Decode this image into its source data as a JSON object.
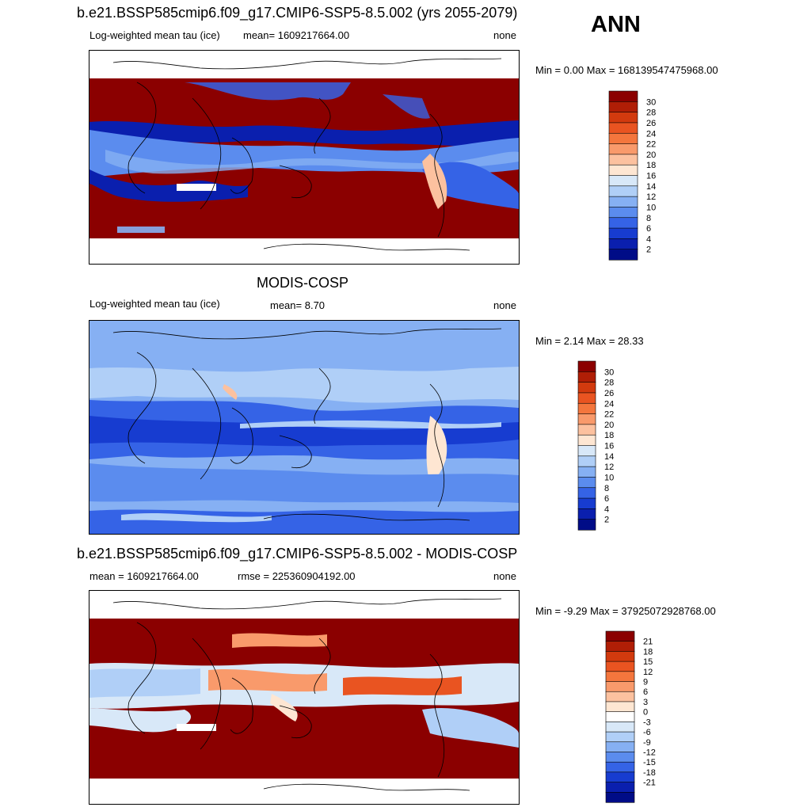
{
  "figure": {
    "season": "ANN"
  },
  "panels": [
    {
      "id": "test",
      "title": "b.e21.BSSP585cmip6.f09_g17.CMIP6-SSP5-8.5.002 (yrs 2055-2079)",
      "left_label": "Log-weighted mean tau (ice)",
      "mean_label": "mean= 1609217664.00",
      "units": "none",
      "minmax": "Min =   0.00 Max = 168139547475968.00",
      "colorbar": {
        "labels": [
          "30",
          "28",
          "26",
          "24",
          "22",
          "20",
          "18",
          "16",
          "14",
          "12",
          "10",
          "8",
          "6",
          "4",
          "2"
        ],
        "colors": [
          "#8B0000",
          "#B01E06",
          "#D23A0E",
          "#E95421",
          "#F4763D",
          "#F99A6B",
          "#FCC19F",
          "#FEE6D2",
          "#D8E8F8",
          "#B0CFF7",
          "#86B0F3",
          "#5B8CEE",
          "#3563E6",
          "#173CD0",
          "#0A1FAE",
          "#000C87"
        ]
      }
    },
    {
      "id": "obs",
      "title": "MODIS-COSP",
      "left_label": "Log-weighted mean tau (ice)",
      "mean_label": "mean=   8.70",
      "units": "none",
      "minmax": "Min =   2.14 Max =  28.33",
      "colorbar": {
        "labels": [
          "30",
          "28",
          "26",
          "24",
          "22",
          "20",
          "18",
          "16",
          "14",
          "12",
          "10",
          "8",
          "6",
          "4",
          "2"
        ],
        "colors": [
          "#8B0000",
          "#B01E06",
          "#D23A0E",
          "#E95421",
          "#F4763D",
          "#F99A6B",
          "#FCC19F",
          "#FEE6D2",
          "#D8E8F8",
          "#B0CFF7",
          "#86B0F3",
          "#5B8CEE",
          "#3563E6",
          "#173CD0",
          "#0A1FAE",
          "#000C87"
        ]
      }
    },
    {
      "id": "diff",
      "title": "b.e21.BSSP585cmip6.f09_g17.CMIP6-SSP5-8.5.002 - MODIS-COSP",
      "left_label": "mean = 1609217664.00",
      "mean_label": "rmse = 225360904192.00",
      "units": "none",
      "minmax": "Min =  -9.29 Max = 37925072928768.00",
      "colorbar": {
        "labels": [
          "21",
          "18",
          "15",
          "12",
          "9",
          "6",
          "3",
          "0",
          "-3",
          "-6",
          "-9",
          "-12",
          "-15",
          "-18",
          "-21"
        ],
        "colors": [
          "#8B0000",
          "#B01E06",
          "#D23A0E",
          "#E95421",
          "#F4763D",
          "#F99A6B",
          "#FCC19F",
          "#FEE6D2",
          "#FFFFFF",
          "#D8E8F8",
          "#B0CFF7",
          "#86B0F3",
          "#5B8CEE",
          "#3563E6",
          "#173CD0",
          "#0A1FAE",
          "#000C87"
        ]
      }
    }
  ],
  "chart_data": [
    {
      "type": "heatmap",
      "title": "b.e21.BSSP585cmip6.f09_g17.CMIP6-SSP5-8.5.002 (yrs 2055-2079)",
      "subtitle": "Log-weighted mean tau (ice)",
      "mean": 1609217664.0,
      "units": "none",
      "min": 0.0,
      "max": 168139547475968.0,
      "colorbar_levels": [
        2,
        4,
        6,
        8,
        10,
        12,
        14,
        16,
        18,
        20,
        22,
        24,
        26,
        28,
        30
      ]
    },
    {
      "type": "heatmap",
      "title": "MODIS-COSP",
      "subtitle": "Log-weighted mean tau (ice)",
      "mean": 8.7,
      "units": "none",
      "min": 2.14,
      "max": 28.33,
      "colorbar_levels": [
        2,
        4,
        6,
        8,
        10,
        12,
        14,
        16,
        18,
        20,
        22,
        24,
        26,
        28,
        30
      ]
    },
    {
      "type": "heatmap",
      "title": "b.e21.BSSP585cmip6.f09_g17.CMIP6-SSP5-8.5.002 - MODIS-COSP",
      "mean": 1609217664.0,
      "rmse": 225360904192.0,
      "units": "none",
      "min": -9.29,
      "max": 37925072928768.0,
      "colorbar_levels": [
        -21,
        -18,
        -15,
        -12,
        -9,
        -6,
        -3,
        0,
        3,
        6,
        9,
        12,
        15,
        18,
        21
      ]
    }
  ]
}
